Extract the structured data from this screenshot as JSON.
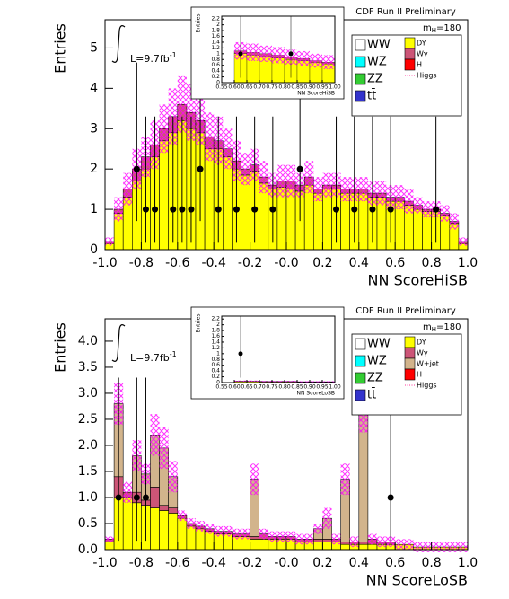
{
  "chart_data": [
    {
      "type": "stacked_histogram",
      "title": "CDF Run II Preliminary",
      "x_label": "NN ScoreHiSB",
      "y_label": "Entries",
      "luminosity": {
        "text": "L=9.7fb",
        "sup": "-1"
      },
      "mass_label": {
        "text": "m",
        "sub": "H",
        "rest": "=180"
      },
      "xlim": [
        -1,
        1
      ],
      "ylim": [
        0,
        5.7
      ],
      "xticks": [
        {
          "value": -1,
          "label": "-1.0"
        },
        -0.8,
        -0.6,
        -0.4,
        -0.2,
        {
          "value": 0,
          "label": "-0.0"
        },
        0.2,
        0.4,
        0.6,
        0.8,
        {
          "value": 1,
          "label": "1.0"
        }
      ],
      "yticks": [
        0,
        1,
        2,
        3,
        4,
        5
      ],
      "bins": [
        -1,
        -0.95,
        -0.9,
        -0.85,
        -0.8,
        -0.75,
        -0.7,
        -0.65,
        -0.6,
        -0.55,
        -0.5,
        -0.45,
        -0.4,
        -0.35,
        -0.3,
        -0.25,
        -0.2,
        -0.15,
        -0.1,
        -0.05,
        0,
        0.05,
        0.1,
        0.15,
        0.2,
        0.25,
        0.3,
        0.35,
        0.4,
        0.45,
        0.5,
        0.55,
        0.6,
        0.65,
        0.7,
        0.75,
        0.8,
        0.85,
        0.9,
        0.95,
        1
      ],
      "series": [
        {
          "name": "DY",
          "color": "#ffff00",
          "values": [
            0.15,
            0.9,
            1.3,
            1.7,
            2.0,
            2.3,
            2.7,
            2.9,
            3.2,
            3.0,
            2.9,
            2.5,
            2.5,
            2.3,
            2.0,
            1.85,
            1.95,
            1.65,
            1.5,
            1.55,
            1.5,
            1.45,
            1.6,
            1.4,
            1.5,
            1.5,
            1.4,
            1.4,
            1.4,
            1.3,
            1.3,
            1.2,
            1.2,
            1.1,
            1.0,
            0.95,
            0.95,
            0.85,
            0.65,
            0.15
          ]
        },
        {
          "name": "Wγ",
          "color": "#cc5577",
          "values": [
            0.05,
            0.1,
            0.2,
            0.3,
            0.3,
            0.3,
            0.3,
            0.4,
            0.4,
            0.4,
            0.3,
            0.3,
            0.2,
            0.2,
            0.2,
            0.15,
            0.15,
            0.15,
            0.1,
            0.15,
            0.2,
            0.15,
            0.2,
            0.1,
            0.1,
            0.1,
            0.1,
            0.1,
            0.1,
            0.1,
            0.1,
            0.1,
            0.1,
            0.1,
            0.1,
            0.05,
            0.05,
            0.05,
            0.05,
            0.05
          ]
        }
      ],
      "band": {
        "color": "#ff00ff",
        "values": [
          0.1,
          0.3,
          0.4,
          0.5,
          0.5,
          0.6,
          0.6,
          0.7,
          0.7,
          0.7,
          0.6,
          0.6,
          0.6,
          0.5,
          0.5,
          0.4,
          0.4,
          0.4,
          0.3,
          0.4,
          0.4,
          0.3,
          0.4,
          0.3,
          0.3,
          0.3,
          0.3,
          0.3,
          0.3,
          0.3,
          0.3,
          0.3,
          0.3,
          0.3,
          0.2,
          0.2,
          0.2,
          0.2,
          0.2,
          0.1
        ]
      },
      "data": {
        "x": [
          -0.825,
          -0.775,
          -0.725,
          -0.625,
          -0.575,
          -0.525,
          -0.475,
          -0.375,
          -0.275,
          -0.175,
          -0.075,
          0.075,
          0.275,
          0.375,
          0.475,
          0.575,
          0.825
        ],
        "y": [
          2,
          1,
          1,
          1,
          1,
          1,
          2,
          1,
          1,
          1,
          1,
          2,
          1,
          1,
          1,
          1,
          1
        ],
        "yerr_low": [
          1.29,
          0.83,
          0.83,
          0.83,
          0.83,
          0.83,
          1.29,
          0.83,
          0.83,
          0.83,
          0.83,
          1.29,
          0.83,
          0.83,
          0.83,
          0.83,
          0.83
        ],
        "yerr_high": [
          2.64,
          2.3,
          2.3,
          2.3,
          2.3,
          2.3,
          2.64,
          2.3,
          2.3,
          2.3,
          2.3,
          2.64,
          2.3,
          2.3,
          2.3,
          2.3,
          2.3
        ]
      },
      "legend_left": [
        {
          "name": "WW",
          "color": "#ffffff"
        },
        {
          "name": "WZ",
          "color": "#00ffff"
        },
        {
          "name": "ZZ",
          "color": "#33cc33"
        },
        {
          "name": "tt̄",
          "color": "#3333cc"
        }
      ],
      "legend_right_extra": [
        {
          "name": "H",
          "color": "#ff0000"
        },
        {
          "name": "Higgs",
          "color": "#ff3399",
          "style": "line"
        }
      ],
      "inset": {
        "x_label": "NN ScoreHiSB",
        "y_label": "Entries",
        "xlim": [
          0.55,
          1
        ],
        "ylim": [
          0,
          2.3
        ],
        "xticks": [
          0.55,
          {
            "value": 0.6,
            "label": "0.60"
          },
          0.65,
          {
            "value": 0.7,
            "label": "0.70"
          },
          0.75,
          {
            "value": 0.8,
            "label": "0.80"
          },
          0.85,
          {
            "value": 0.9,
            "label": "0.90"
          },
          0.95,
          {
            "value": 1,
            "label": "1.00"
          }
        ],
        "yticks": [
          0,
          0.2,
          0.4,
          0.6,
          0.8,
          1,
          1.2,
          1.4,
          1.6,
          1.8,
          2,
          2.2
        ],
        "bins": [
          0.6,
          0.65,
          0.7,
          0.75,
          0.8,
          0.85,
          0.9,
          0.95,
          1
        ],
        "series": [
          {
            "name": "DY",
            "color": "#ffff00",
            "values": [
              1.0,
              0.95,
              0.9,
              0.85,
              0.8,
              0.75,
              0.7,
              0.65
            ]
          },
          {
            "name": "Wγ",
            "color": "#cc5577",
            "values": [
              0.1,
              0.1,
              0.1,
              0.1,
              0.08,
              0.08,
              0.06,
              0.06
            ]
          }
        ],
        "band": {
          "color": "#ff00ff",
          "values": [
            0.3,
            0.3,
            0.28,
            0.28,
            0.26,
            0.26,
            0.24,
            0.24
          ]
        },
        "data": {
          "x": [
            0.625,
            0.825
          ],
          "y": [
            1,
            1
          ],
          "yerr_low": [
            0.83,
            0.83
          ],
          "yerr_high": [
            2.3,
            2.3
          ]
        }
      }
    },
    {
      "type": "stacked_histogram",
      "title": "CDF Run II Preliminary",
      "x_label": "NN ScoreLoSB",
      "y_label": "Entries",
      "luminosity": {
        "text": "L=9.7fb",
        "sup": "-1"
      },
      "mass_label": {
        "text": "m",
        "sub": "H",
        "rest": "=180"
      },
      "xlim": [
        -1,
        1
      ],
      "ylim": [
        0,
        4.43
      ],
      "xticks": [
        {
          "value": -1,
          "label": "-1.0"
        },
        -0.8,
        -0.6,
        -0.4,
        -0.2,
        {
          "value": 0,
          "label": "-0.0"
        },
        0.2,
        0.4,
        0.6,
        0.8,
        {
          "value": 1,
          "label": "1.0"
        }
      ],
      "yticks": [
        {
          "value": 0,
          "label": "0.0"
        },
        0.5,
        {
          "value": 1,
          "label": "1.0"
        },
        1.5,
        {
          "value": 2,
          "label": "2.0"
        },
        2.5,
        {
          "value": 3,
          "label": "3.0"
        },
        3.5,
        {
          "value": 4,
          "label": "4.0"
        }
      ],
      "bins": [
        -1,
        -0.95,
        -0.9,
        -0.85,
        -0.8,
        -0.75,
        -0.7,
        -0.65,
        -0.6,
        -0.55,
        -0.5,
        -0.45,
        -0.4,
        -0.35,
        -0.3,
        -0.25,
        -0.2,
        -0.15,
        -0.1,
        -0.05,
        0,
        0.05,
        0.1,
        0.15,
        0.2,
        0.25,
        0.3,
        0.35,
        0.4,
        0.45,
        0.5,
        0.55,
        0.6,
        0.65,
        0.7,
        0.75,
        0.8,
        0.85,
        0.9,
        0.95,
        1
      ],
      "series": [
        {
          "name": "DY",
          "color": "#ffff00",
          "values": [
            0.15,
            1.0,
            1.0,
            0.9,
            0.85,
            0.8,
            0.75,
            0.7,
            0.6,
            0.45,
            0.4,
            0.35,
            0.3,
            0.3,
            0.25,
            0.25,
            0.2,
            0.2,
            0.2,
            0.2,
            0.2,
            0.15,
            0.15,
            0.15,
            0.15,
            0.15,
            0.1,
            0.1,
            0.1,
            0.1,
            0.1,
            0.1,
            0.1,
            0.1,
            0.05,
            0.05,
            0.05,
            0.05,
            0.05,
            0.05
          ]
        },
        {
          "name": "Wγ",
          "color": "#cc5577",
          "values": [
            0.05,
            0.4,
            0.1,
            0.2,
            0.1,
            0.4,
            0.1,
            0.1,
            0.05,
            0.05,
            0.05,
            0.05,
            0.05,
            0.05,
            0.05,
            0.05,
            0.05,
            0.1,
            0.05,
            0.05,
            0.05,
            0.05,
            0.05,
            0.05,
            0.05,
            0.05,
            0.05,
            0.05,
            0.05,
            0.1,
            0.05,
            0.05,
            0,
            0,
            0,
            0,
            0,
            0,
            0,
            0
          ]
        },
        {
          "name": "W+jet",
          "color": "#d2b48c",
          "values": [
            0,
            1.4,
            0,
            0.7,
            0.5,
            1.0,
            1.1,
            0.6,
            0,
            0,
            0,
            0,
            0,
            0,
            0,
            0,
            1.1,
            0,
            0,
            0,
            0,
            0,
            0,
            0.2,
            0.4,
            0,
            1.2,
            0,
            2.5,
            0,
            0,
            0,
            0,
            0,
            0,
            0,
            0,
            0,
            0,
            0
          ]
        }
      ],
      "band": {
        "color": "#ff00ff",
        "values": [
          0.05,
          0.4,
          0.2,
          0.3,
          0.2,
          0.4,
          0.4,
          0.3,
          0.1,
          0.1,
          0.1,
          0.1,
          0.1,
          0.1,
          0.1,
          0.1,
          0.3,
          0.1,
          0.1,
          0.1,
          0.1,
          0.1,
          0.1,
          0.1,
          0.2,
          0.1,
          0.3,
          0.1,
          0.4,
          0.1,
          0.1,
          0.1,
          0.1,
          0.1,
          0.1,
          0.1,
          0.1,
          0.1,
          0.1,
          0.1
        ]
      },
      "data": {
        "x": [
          -0.925,
          -0.825,
          -0.775,
          0.575
        ],
        "y": [
          1,
          1,
          1,
          1
        ],
        "yerr_low": [
          0.83,
          0.83,
          0.83,
          0.83
        ],
        "yerr_high": [
          2.3,
          2.3,
          2.3,
          2.3
        ]
      },
      "legend_left": [
        {
          "name": "WW",
          "color": "#ffffff"
        },
        {
          "name": "WZ",
          "color": "#00ffff"
        },
        {
          "name": "ZZ",
          "color": "#33cc33"
        },
        {
          "name": "tt̄",
          "color": "#3333cc"
        }
      ],
      "legend_right_extra": [
        {
          "name": "H",
          "color": "#ff0000"
        },
        {
          "name": "Higgs",
          "color": "#ff3399",
          "style": "line"
        }
      ],
      "inset": {
        "x_label": "NN ScoreLoSB",
        "y_label": "Entries",
        "xlim": [
          0.55,
          1
        ],
        "ylim": [
          0,
          2.3
        ],
        "xticks": [
          0.55,
          {
            "value": 0.6,
            "label": "0.60"
          },
          0.65,
          {
            "value": 0.7,
            "label": "0.70"
          },
          0.75,
          {
            "value": 0.8,
            "label": "0.80"
          },
          0.85,
          {
            "value": 0.9,
            "label": "0.90"
          },
          0.95,
          {
            "value": 1,
            "label": "1.00"
          }
        ],
        "yticks": [
          0,
          0.2,
          0.4,
          0.6,
          0.8,
          1,
          1.2,
          1.4,
          1.6,
          1.8,
          2,
          2.2
        ],
        "bins": [
          0.6,
          0.65,
          0.7,
          0.75,
          0.8,
          0.85,
          0.9,
          0.95,
          1
        ],
        "series": [
          {
            "name": "DY",
            "color": "#ffff00",
            "values": [
              0.04,
              0.04,
              0.03,
              0.03,
              0.03,
              0.02,
              0.02,
              0.02
            ]
          },
          {
            "name": "Wγ",
            "color": "#cc5577",
            "values": [
              0.01,
              0.01,
              0.01,
              0.01,
              0.01,
              0.01,
              0.01,
              0.01
            ]
          }
        ],
        "band": {
          "color": "#ff00ff",
          "values": [
            0.02,
            0.02,
            0.02,
            0.02,
            0.02,
            0.02,
            0.02,
            0.02
          ]
        },
        "data": {
          "x": [
            0.625
          ],
          "y": [
            1
          ],
          "yerr_low": [
            0.83
          ],
          "yerr_high": [
            2.3
          ]
        }
      }
    }
  ]
}
